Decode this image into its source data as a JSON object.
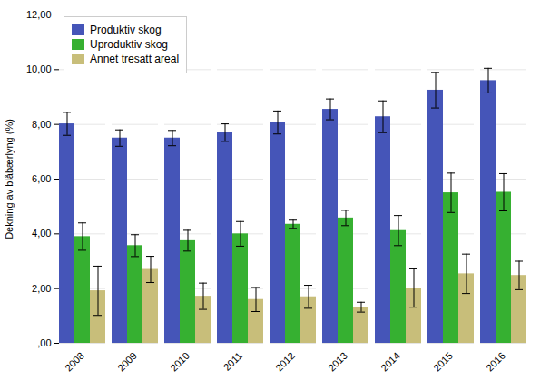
{
  "chart_data": {
    "type": "bar",
    "categories": [
      "2008",
      "2009",
      "2010",
      "2011",
      "2012",
      "2013",
      "2014",
      "2015",
      "2016"
    ],
    "series": [
      {
        "name": "Produktiv skog",
        "color": "#4555b8",
        "values": [
          8.02,
          7.5,
          7.5,
          7.7,
          8.07,
          8.55,
          8.28,
          9.25,
          9.6
        ],
        "errors": [
          0.42,
          0.3,
          0.28,
          0.32,
          0.42,
          0.38,
          0.58,
          0.65,
          0.45
        ]
      },
      {
        "name": "Uproduktiv skog",
        "color": "#36b031",
        "values": [
          3.9,
          3.57,
          3.75,
          4.0,
          4.35,
          4.58,
          4.12,
          5.5,
          5.52
        ],
        "errors": [
          0.5,
          0.4,
          0.38,
          0.45,
          0.15,
          0.28,
          0.55,
          0.72,
          0.68
        ]
      },
      {
        "name": "Annet tresatt areal",
        "color": "#c8be7a",
        "values": [
          1.92,
          2.7,
          1.72,
          1.6,
          1.7,
          1.32,
          2.02,
          2.54,
          2.48
        ],
        "errors": [
          0.9,
          0.48,
          0.48,
          0.44,
          0.42,
          0.18,
          0.7,
          0.72,
          0.52
        ]
      }
    ],
    "ylabel": "Dekning av blåbærlyng (%)",
    "ylim": [
      0,
      12.0
    ],
    "yticks": [
      {
        "value": 0.0,
        "label": ",00"
      },
      {
        "value": 2.0,
        "label": "2,00"
      },
      {
        "value": 4.0,
        "label": "4,00"
      },
      {
        "value": 6.0,
        "label": "6,00"
      },
      {
        "value": 8.0,
        "label": "8,00"
      },
      {
        "value": 10.0,
        "label": "10,00"
      },
      {
        "value": 12.0,
        "label": "12,00"
      }
    ],
    "grid": true,
    "legend": "upper left"
  }
}
